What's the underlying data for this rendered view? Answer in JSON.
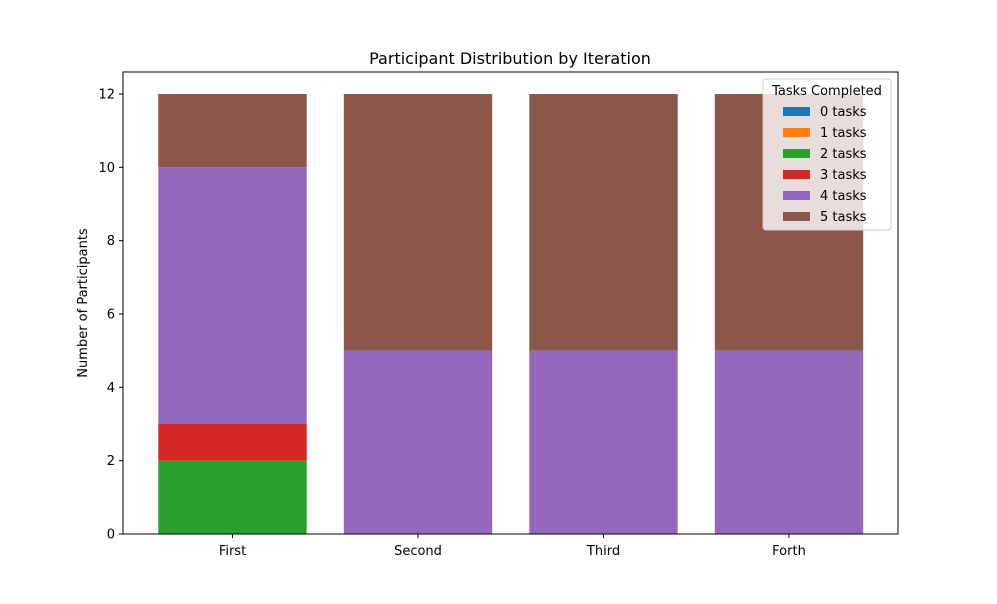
{
  "chart_data": {
    "type": "bar",
    "stacked": true,
    "title": "Participant Distribution by Iteration",
    "xlabel": "",
    "ylabel": "Number of Participants",
    "categories": [
      "First",
      "Second",
      "Third",
      "Forth"
    ],
    "ylim": [
      0,
      12.6
    ],
    "yticks": [
      0,
      2,
      4,
      6,
      8,
      10,
      12
    ],
    "grid": false,
    "legend": {
      "title": "Tasks Completed",
      "placement": "top-right"
    },
    "series": [
      {
        "name": "0 tasks",
        "color": "#1f77b4",
        "values": [
          0,
          0,
          0,
          0
        ]
      },
      {
        "name": "1 tasks",
        "color": "#ff7f0e",
        "values": [
          0,
          0,
          0,
          0
        ]
      },
      {
        "name": "2 tasks",
        "color": "#2ca02c",
        "values": [
          2,
          0,
          0,
          0
        ]
      },
      {
        "name": "3 tasks",
        "color": "#d62728",
        "values": [
          1,
          0,
          0,
          0
        ]
      },
      {
        "name": "4 tasks",
        "color": "#9467bd",
        "values": [
          7,
          5,
          5,
          5
        ]
      },
      {
        "name": "5 tasks",
        "color": "#8c564b",
        "values": [
          2,
          7,
          7,
          7
        ]
      }
    ]
  }
}
